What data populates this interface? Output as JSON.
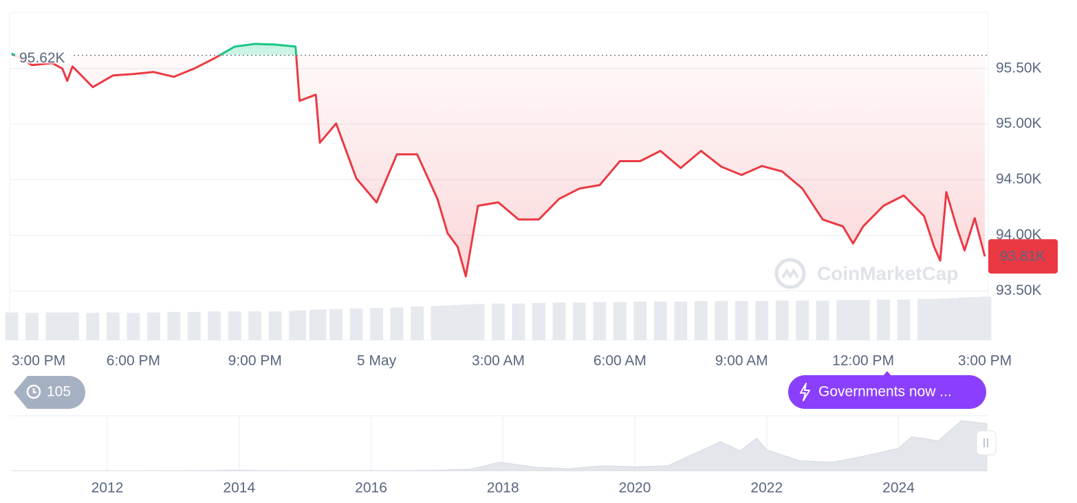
{
  "chart_data": [
    {
      "type": "line",
      "x": [
        0,
        0.5,
        1,
        1.25,
        1.37,
        1.5,
        2,
        2.5,
        3,
        3.5,
        4,
        4.5,
        5,
        5.5,
        6,
        6.5,
        7,
        7.1,
        7.5,
        7.6,
        8,
        8.5,
        9,
        9.5,
        10,
        10.5,
        10.75,
        11,
        11.2,
        11.5,
        12,
        12.5,
        13,
        13.5,
        14,
        14.5,
        15,
        15.5,
        16,
        16.5,
        17,
        17.5,
        18,
        18.5,
        19,
        19.5,
        20,
        20.5,
        20.75,
        21,
        21.5,
        22,
        22.5,
        22.75,
        22.9,
        23.05,
        23.3,
        23.5,
        23.75,
        24
      ],
      "values": [
        95636,
        95531,
        95549,
        95500,
        95389,
        95519,
        95333,
        95438,
        95451,
        95469,
        95426,
        95500,
        95593,
        95698,
        95722,
        95716,
        95698,
        95210,
        95265,
        94833,
        95006,
        94512,
        94296,
        94728,
        94728,
        94327,
        94019,
        93895,
        93630,
        94265,
        94296,
        94142,
        94142,
        94327,
        94420,
        94451,
        94667,
        94667,
        94759,
        94605,
        94759,
        94617,
        94543,
        94623,
        94574,
        94420,
        94142,
        94080,
        93926,
        94080,
        94265,
        94358,
        94173,
        93895,
        93772,
        94389,
        94080,
        93864,
        94154,
        93810
      ],
      "volume": [
        56,
        55,
        56,
        56,
        55,
        56,
        55,
        56,
        55,
        56,
        57,
        57,
        58,
        58,
        58,
        58,
        59,
        60,
        61,
        62,
        63,
        64,
        65,
        66,
        68,
        69,
        70,
        71,
        72,
        73,
        74,
        74,
        75,
        76,
        76,
        77,
        77,
        78,
        78,
        78,
        79,
        79,
        79,
        79,
        80,
        80,
        80,
        81,
        81,
        81,
        82,
        82,
        83,
        83,
        83,
        84,
        85,
        86,
        87,
        88
      ],
      "volume_ylim": [
        0,
        100
      ],
      "volume_color": "#e6e9ee",
      "color_up": "#16c784",
      "color_down": "#ea3943",
      "reference": {
        "value": 95620,
        "label": "95.62K"
      },
      "last_price": {
        "value": 93810,
        "label": "93.81K"
      },
      "xlim": [
        0,
        24
      ],
      "ylim": [
        93056,
        96006
      ],
      "xticks": [
        {
          "value": 0,
          "label": "3:00 PM"
        },
        {
          "value": 3,
          "label": "6:00 PM"
        },
        {
          "value": 6,
          "label": "9:00 PM"
        },
        {
          "value": 9,
          "label": "5 May"
        },
        {
          "value": 12,
          "label": "3:00 AM"
        },
        {
          "value": 15,
          "label": "6:00 AM"
        },
        {
          "value": 18,
          "label": "9:00 AM"
        },
        {
          "value": 21,
          "label": "12:00 PM"
        },
        {
          "value": 24,
          "label": "3:00 PM"
        }
      ],
      "yticks": [
        {
          "value": 93500,
          "label": "93.50K"
        },
        {
          "value": 94000,
          "label": "94.00K"
        },
        {
          "value": 94500,
          "label": "94.50K"
        },
        {
          "value": 95000,
          "label": "95.00K"
        },
        {
          "value": 95500,
          "label": "95.50K"
        }
      ],
      "grid": true
    },
    {
      "type": "area",
      "x": [
        2010.55,
        2011.5,
        2012,
        2013,
        2013.9,
        2014.5,
        2015.5,
        2016.5,
        2017,
        2017.5,
        2017.95,
        2018.5,
        2019,
        2019.5,
        2020,
        2020.5,
        2021,
        2021.3,
        2021.6,
        2021.85,
        2022,
        2022.5,
        2023,
        2023.5,
        2024,
        2024.2,
        2024.6,
        2024.95,
        2025.1,
        2025.34
      ],
      "values": [
        0,
        5,
        10,
        100,
        1000,
        500,
        300,
        600,
        1000,
        3000,
        17000,
        7000,
        4000,
        10000,
        8000,
        10000,
        40000,
        58000,
        40000,
        65000,
        42000,
        20000,
        17000,
        30000,
        45000,
        68000,
        60000,
        100000,
        98000,
        94000
      ],
      "color": "#e3e6ea",
      "xlim": [
        2010.55,
        2025.34
      ],
      "ylim": [
        0,
        110000
      ],
      "xticks": [
        2012,
        2014,
        2016,
        2018,
        2020,
        2022,
        2024
      ]
    }
  ],
  "controls": {
    "history_count": 105,
    "news": "Governments now ...",
    "watermark": "CoinMarketCap"
  }
}
